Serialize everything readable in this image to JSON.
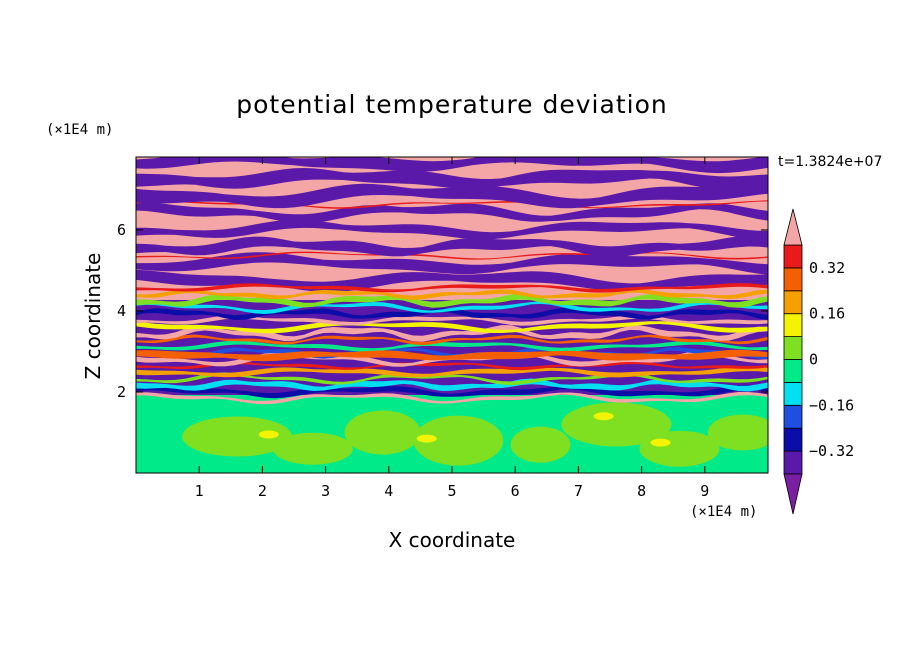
{
  "chart_data": {
    "type": "heatmap",
    "title": "potential temperature deviation",
    "xlabel": "X coordinate",
    "ylabel": "Z coordinate",
    "x_unit_label": "(×1E4 m)",
    "y_unit_label": "(×1E4 m)",
    "time_label": "t=1.3824e+07",
    "xlim": [
      0,
      10
    ],
    "ylim": [
      0,
      7.8
    ],
    "x_ticks": [
      1,
      2,
      3,
      4,
      5,
      6,
      7,
      8,
      9
    ],
    "y_ticks": [
      2,
      4,
      6
    ],
    "colorbar": {
      "levels": [
        -0.4,
        -0.32,
        -0.24,
        -0.16,
        -0.08,
        0,
        0.08,
        0.16,
        0.24,
        0.32,
        0.4
      ],
      "labels": [
        "0.32",
        "0.16",
        "0",
        "−0.16",
        "−0.32"
      ],
      "label_values": [
        0.32,
        0.16,
        0,
        -0.16,
        -0.32
      ],
      "under_color": "#7b1fa2",
      "over_color": "#f4a6a6",
      "colors": [
        "#5a19a8",
        "#0c0ca8",
        "#1e4fe0",
        "#00e0f0",
        "#00ea8a",
        "#7ee020",
        "#f4f400",
        "#f4a000",
        "#f46000",
        "#e81a1a"
      ]
    },
    "regions": {
      "lower_layer": {
        "z_range": [
          0,
          1.8
        ],
        "dominant_value": 0.02,
        "description_value": "near-zero deviation (green)"
      },
      "mixed_layer": {
        "z_range": [
          1.8,
          4.6
        ],
        "dominant_value": "mixed"
      },
      "upper_layer": {
        "z_range": [
          4.6,
          7.8
        ],
        "dominant_value": "alternating over / under (pink / purple bands)"
      }
    }
  }
}
